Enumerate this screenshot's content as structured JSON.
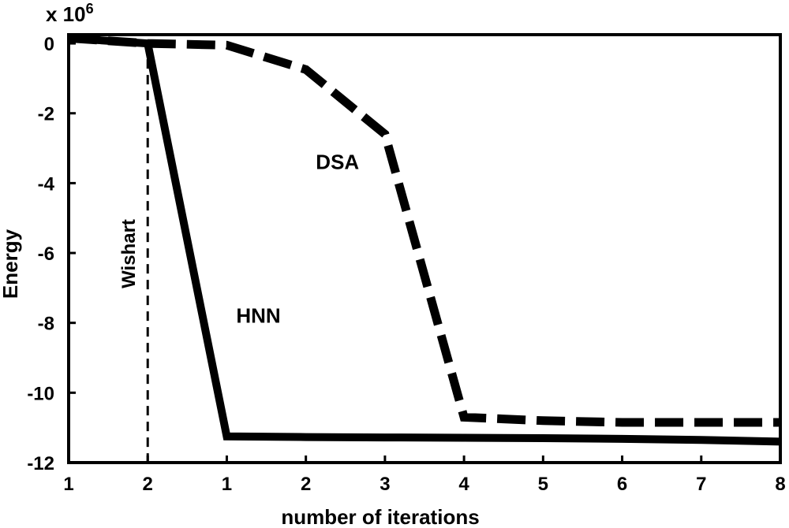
{
  "chart_data": {
    "type": "line",
    "title": "",
    "xlabel": "number of iterations",
    "ylabel": "Energy",
    "y_multiplier": "x 10",
    "y_multiplier_exponent": "6",
    "ylim": [
      -12,
      0.25
    ],
    "y_ticks": [
      0,
      -2,
      -4,
      -6,
      -8,
      -10,
      -12
    ],
    "x_tick_labels": [
      "1",
      "2",
      "1",
      "2",
      "3",
      "4",
      "5",
      "6",
      "7",
      "8"
    ],
    "grid": false,
    "legend": "none",
    "series": [
      {
        "name": "DSA",
        "style": "dashed",
        "points": [
          [
            0,
            0.15
          ],
          [
            1,
            0
          ],
          [
            2,
            -0.05
          ],
          [
            3,
            -0.75
          ],
          [
            4,
            -2.6
          ],
          [
            5,
            -10.7
          ],
          [
            6,
            -10.8
          ],
          [
            7,
            -10.85
          ],
          [
            8,
            -10.85
          ],
          [
            9,
            -10.85
          ]
        ]
      },
      {
        "name": "HNN",
        "style": "solid",
        "points": [
          [
            0,
            0.15
          ],
          [
            1,
            0
          ],
          [
            2,
            -11.25
          ],
          [
            3,
            -11.27
          ],
          [
            4,
            -11.28
          ],
          [
            5,
            -11.29
          ],
          [
            6,
            -11.3
          ],
          [
            7,
            -11.32
          ],
          [
            8,
            -11.35
          ],
          [
            9,
            -11.4
          ]
        ]
      }
    ],
    "annotations": [
      {
        "text": "Wishart",
        "x": 1,
        "style": "dashed vertical line"
      }
    ]
  }
}
